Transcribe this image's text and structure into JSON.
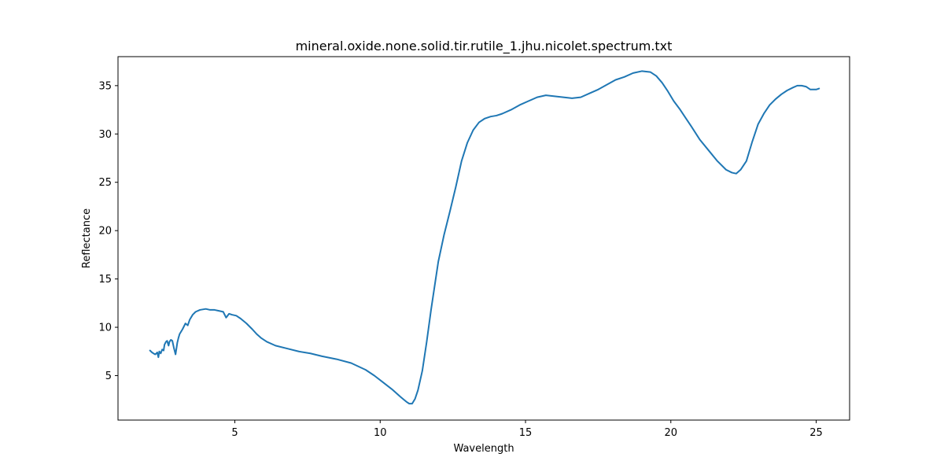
{
  "chart_data": {
    "type": "line",
    "title": "mineral.oxide.none.solid.tir.rutile_1.jhu.nicolet.spectrum.txt",
    "xlabel": "Wavelength",
    "ylabel": "Reflectance",
    "xlim": [
      0.98,
      26.15
    ],
    "ylim": [
      0.4,
      38.0
    ],
    "xticks": [
      5,
      10,
      15,
      20,
      25
    ],
    "yticks": [
      5,
      10,
      15,
      20,
      25,
      30,
      35
    ],
    "grid": false,
    "legend": "none",
    "series": [
      {
        "color": "#1f77b4",
        "x": [
          2.08,
          2.15,
          2.2,
          2.26,
          2.3,
          2.33,
          2.37,
          2.4,
          2.45,
          2.5,
          2.55,
          2.58,
          2.63,
          2.67,
          2.72,
          2.75,
          2.8,
          2.85,
          2.9,
          2.96,
          3.02,
          3.06,
          3.1,
          3.2,
          3.3,
          3.38,
          3.45,
          3.55,
          3.65,
          3.8,
          4.0,
          4.15,
          4.3,
          4.45,
          4.6,
          4.7,
          4.8,
          4.9,
          5.05,
          5.2,
          5.4,
          5.6,
          5.75,
          5.9,
          6.1,
          6.4,
          6.8,
          7.2,
          7.6,
          8.0,
          8.5,
          9.0,
          9.5,
          9.8,
          10.1,
          10.4,
          10.7,
          10.9,
          11.0,
          11.1,
          11.2,
          11.3,
          11.45,
          11.6,
          11.75,
          11.9,
          12.0,
          12.2,
          12.4,
          12.6,
          12.8,
          13.0,
          13.2,
          13.4,
          13.6,
          13.8,
          14.0,
          14.2,
          14.5,
          14.8,
          15.1,
          15.4,
          15.7,
          16.0,
          16.3,
          16.6,
          16.9,
          17.2,
          17.5,
          17.8,
          18.1,
          18.4,
          18.7,
          19.0,
          19.3,
          19.5,
          19.7,
          19.9,
          20.1,
          20.3,
          20.5,
          20.7,
          21.0,
          21.3,
          21.6,
          21.9,
          22.1,
          22.25,
          22.4,
          22.6,
          22.8,
          23.0,
          23.2,
          23.4,
          23.6,
          23.8,
          24.0,
          24.2,
          24.35,
          24.5,
          24.65,
          24.8,
          25.0,
          25.1
        ],
        "y": [
          7.6,
          7.4,
          7.3,
          7.2,
          7.3,
          7.4,
          6.9,
          7.5,
          7.3,
          7.7,
          7.6,
          8.2,
          8.5,
          8.6,
          8.1,
          8.5,
          8.7,
          8.6,
          7.9,
          7.2,
          8.4,
          8.9,
          9.3,
          9.8,
          10.4,
          10.2,
          10.8,
          11.3,
          11.6,
          11.8,
          11.9,
          11.8,
          11.8,
          11.7,
          11.6,
          11.0,
          11.4,
          11.3,
          11.2,
          10.9,
          10.4,
          9.8,
          9.3,
          8.9,
          8.5,
          8.1,
          7.8,
          7.5,
          7.3,
          7.0,
          6.7,
          6.3,
          5.6,
          5.0,
          4.3,
          3.6,
          2.8,
          2.3,
          2.1,
          2.1,
          2.6,
          3.5,
          5.5,
          8.5,
          11.8,
          14.8,
          16.8,
          19.6,
          22.0,
          24.5,
          27.2,
          29.1,
          30.4,
          31.2,
          31.6,
          31.8,
          31.9,
          32.1,
          32.5,
          33.0,
          33.4,
          33.8,
          34.0,
          33.9,
          33.8,
          33.7,
          33.8,
          34.2,
          34.6,
          35.1,
          35.6,
          35.9,
          36.3,
          36.5,
          36.4,
          36.0,
          35.3,
          34.4,
          33.4,
          32.6,
          31.7,
          30.8,
          29.4,
          28.3,
          27.2,
          26.3,
          26.0,
          25.9,
          26.3,
          27.2,
          29.2,
          31.0,
          32.1,
          33.0,
          33.6,
          34.1,
          34.5,
          34.8,
          35.0,
          35.0,
          34.9,
          34.6,
          34.6,
          34.7
        ]
      }
    ]
  }
}
